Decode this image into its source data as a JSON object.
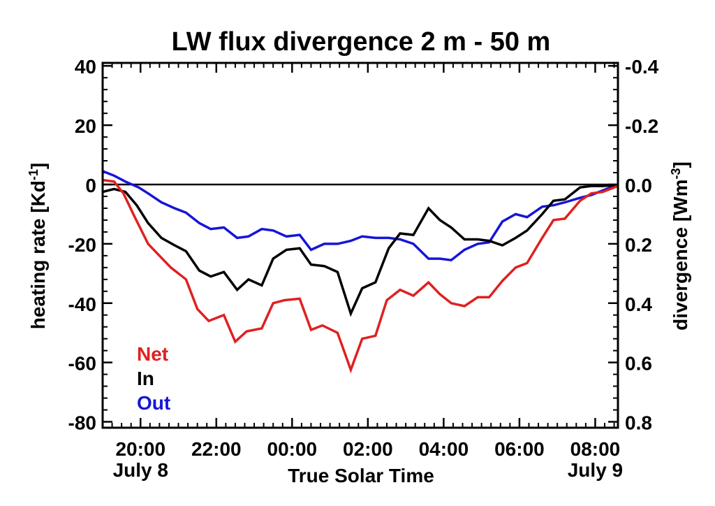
{
  "chart_data": {
    "type": "line",
    "title": "LW flux divergence 2 m - 50 m",
    "xlabel": "True Solar Time",
    "ylabel": "heating rate [Kd",
    "ylabel_sup": "-1",
    "ylabel_end": "]",
    "y2label": "divergence [Wm",
    "y2label_sup": "-3",
    "y2label_end": "]",
    "xlim": [
      19.0,
      32.6
    ],
    "ylim": [
      -82,
      41
    ],
    "y2_factor": -0.01,
    "y2_ticks": [
      {
        "value": 40,
        "label": "-0.4"
      },
      {
        "value": 20,
        "label": "-0.2"
      },
      {
        "value": 0,
        "label": "0.0"
      },
      {
        "value": -20,
        "label": "0.2"
      },
      {
        "value": -40,
        "label": "0.4"
      },
      {
        "value": -60,
        "label": "0.6"
      },
      {
        "value": -80,
        "label": "0.8"
      }
    ],
    "y_ticks": [
      {
        "value": 40,
        "label": "40"
      },
      {
        "value": 20,
        "label": "20"
      },
      {
        "value": 0,
        "label": "0"
      },
      {
        "value": -20,
        "label": "-20"
      },
      {
        "value": -40,
        "label": "-40"
      },
      {
        "value": -60,
        "label": "-60"
      },
      {
        "value": -80,
        "label": "-80"
      }
    ],
    "x_ticks": [
      {
        "value": 20,
        "label": "20:00",
        "sub": "July 8"
      },
      {
        "value": 22,
        "label": "22:00",
        "sub": ""
      },
      {
        "value": 24,
        "label": "00:00",
        "sub": ""
      },
      {
        "value": 26,
        "label": "02:00",
        "sub": ""
      },
      {
        "value": 28,
        "label": "04:00",
        "sub": ""
      },
      {
        "value": 30,
        "label": "06:00",
        "sub": ""
      },
      {
        "value": 32,
        "label": "08:00",
        "sub": "July 9"
      }
    ],
    "zero_line": 0,
    "legend_position": "bottom-left",
    "series": [
      {
        "name": "Net",
        "color": "#e02020",
        "points": [
          [
            19.0,
            1.5
          ],
          [
            19.3,
            1.0
          ],
          [
            19.55,
            -3
          ],
          [
            19.85,
            -11
          ],
          [
            20.2,
            -20
          ],
          [
            20.5,
            -24
          ],
          [
            20.8,
            -28
          ],
          [
            21.2,
            -32
          ],
          [
            21.5,
            -42
          ],
          [
            21.8,
            -46
          ],
          [
            22.2,
            -44
          ],
          [
            22.5,
            -53
          ],
          [
            22.8,
            -49.5
          ],
          [
            23.2,
            -48.5
          ],
          [
            23.5,
            -40
          ],
          [
            23.8,
            -39
          ],
          [
            24.2,
            -38.5
          ],
          [
            24.5,
            -49
          ],
          [
            24.8,
            -47.5
          ],
          [
            25.2,
            -50
          ],
          [
            25.55,
            -62.5
          ],
          [
            25.85,
            -52
          ],
          [
            26.2,
            -51
          ],
          [
            26.5,
            -39
          ],
          [
            26.85,
            -35.5
          ],
          [
            27.2,
            -37.5
          ],
          [
            27.6,
            -33
          ],
          [
            27.9,
            -37
          ],
          [
            28.2,
            -40
          ],
          [
            28.55,
            -41
          ],
          [
            28.9,
            -38
          ],
          [
            29.2,
            -38
          ],
          [
            29.55,
            -32.5
          ],
          [
            29.9,
            -28
          ],
          [
            30.2,
            -26.5
          ],
          [
            30.6,
            -18
          ],
          [
            30.9,
            -12
          ],
          [
            31.2,
            -11.5
          ],
          [
            31.6,
            -5.5
          ],
          [
            31.9,
            -3
          ],
          [
            32.2,
            -2.5
          ],
          [
            32.6,
            -0.5
          ]
        ]
      },
      {
        "name": "In",
        "color": "#000000",
        "points": [
          [
            19.0,
            -2.5
          ],
          [
            19.3,
            -1.5
          ],
          [
            19.6,
            -2.5
          ],
          [
            19.9,
            -7
          ],
          [
            20.2,
            -13
          ],
          [
            20.55,
            -18
          ],
          [
            20.9,
            -20.5
          ],
          [
            21.2,
            -22.5
          ],
          [
            21.55,
            -29
          ],
          [
            21.85,
            -31
          ],
          [
            22.2,
            -29.5
          ],
          [
            22.55,
            -35.5
          ],
          [
            22.85,
            -32
          ],
          [
            23.2,
            -34
          ],
          [
            23.5,
            -25
          ],
          [
            23.85,
            -22
          ],
          [
            24.2,
            -21.5
          ],
          [
            24.5,
            -27
          ],
          [
            24.85,
            -27.5
          ],
          [
            25.2,
            -29.5
          ],
          [
            25.55,
            -43.5
          ],
          [
            25.85,
            -35
          ],
          [
            26.2,
            -33
          ],
          [
            26.55,
            -21.5
          ],
          [
            26.85,
            -16.5
          ],
          [
            27.2,
            -17
          ],
          [
            27.6,
            -8
          ],
          [
            27.9,
            -12
          ],
          [
            28.2,
            -14.5
          ],
          [
            28.55,
            -18.5
          ],
          [
            28.9,
            -18.5
          ],
          [
            29.2,
            -19
          ],
          [
            29.55,
            -20.5
          ],
          [
            29.9,
            -18
          ],
          [
            30.2,
            -15.5
          ],
          [
            30.6,
            -10
          ],
          [
            30.9,
            -5.5
          ],
          [
            31.2,
            -5
          ],
          [
            31.6,
            -1
          ],
          [
            31.9,
            -0.5
          ],
          [
            32.2,
            -0.5
          ],
          [
            32.6,
            -0.2
          ]
        ]
      },
      {
        "name": "Out",
        "color": "#1515d8",
        "points": [
          [
            19.0,
            4.5
          ],
          [
            19.3,
            3.0
          ],
          [
            19.6,
            1.0
          ],
          [
            19.95,
            -1
          ],
          [
            20.2,
            -3
          ],
          [
            20.55,
            -6
          ],
          [
            20.9,
            -8
          ],
          [
            21.2,
            -9.5
          ],
          [
            21.55,
            -13
          ],
          [
            21.85,
            -15
          ],
          [
            22.2,
            -14.5
          ],
          [
            22.55,
            -18
          ],
          [
            22.85,
            -17.5
          ],
          [
            23.2,
            -15
          ],
          [
            23.5,
            -15.5
          ],
          [
            23.85,
            -17.5
          ],
          [
            24.2,
            -17
          ],
          [
            24.5,
            -22
          ],
          [
            24.85,
            -20
          ],
          [
            25.2,
            -20
          ],
          [
            25.55,
            -19
          ],
          [
            25.85,
            -17.5
          ],
          [
            26.2,
            -18
          ],
          [
            26.55,
            -18
          ],
          [
            26.85,
            -18.5
          ],
          [
            27.2,
            -20
          ],
          [
            27.6,
            -25
          ],
          [
            27.9,
            -25
          ],
          [
            28.2,
            -25.5
          ],
          [
            28.55,
            -22
          ],
          [
            28.9,
            -20
          ],
          [
            29.2,
            -19.5
          ],
          [
            29.55,
            -12.5
          ],
          [
            29.9,
            -10
          ],
          [
            30.2,
            -11
          ],
          [
            30.6,
            -7.5
          ],
          [
            30.9,
            -7
          ],
          [
            31.2,
            -6
          ],
          [
            31.6,
            -4.5
          ],
          [
            31.9,
            -3.5
          ],
          [
            32.2,
            -2
          ],
          [
            32.6,
            0
          ]
        ]
      }
    ]
  }
}
